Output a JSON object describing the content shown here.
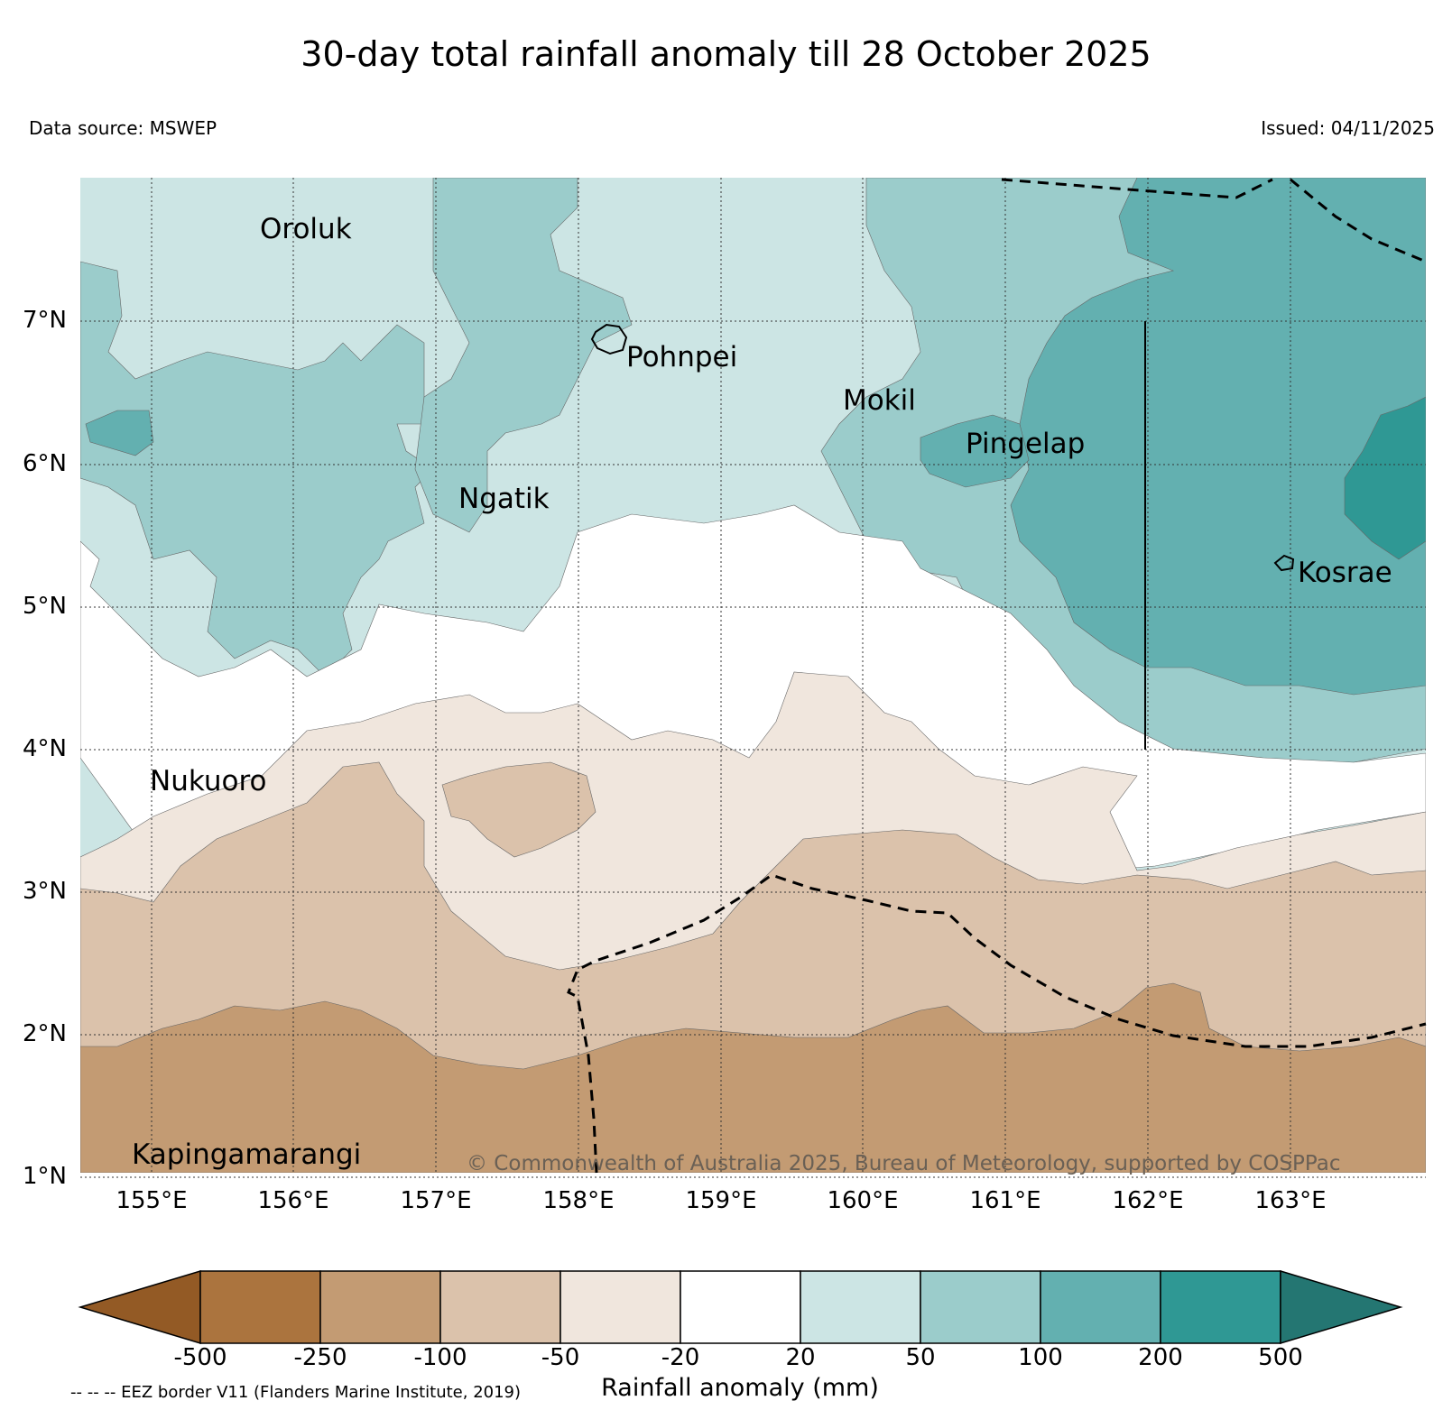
{
  "title": "30-day total rainfall anomaly till 28 October 2025",
  "data_source": "Data source: MSWEP",
  "issued": "Issued: 04/11/2025",
  "copyright": "© Commonwealth of Australia 2025, Bureau of Meteorology, supported by COSPPac",
  "eez_note": "-- -- -- EEZ border V11 (Flanders Marine Institute, 2019)",
  "map": {
    "lat_ticks": [
      "7°N",
      "6°N",
      "5°N",
      "4°N",
      "3°N",
      "2°N",
      "1°N"
    ],
    "lon_ticks": [
      "155°E",
      "156°E",
      "157°E",
      "158°E",
      "159°E",
      "160°E",
      "161°E",
      "162°E",
      "163°E"
    ],
    "places": {
      "oroluk": "Oroluk",
      "pohnpei": "Pohnpei",
      "mokil": "Mokil",
      "pingelap": "Pingelap",
      "ngatik": "Ngatik",
      "kosrae": "Kosrae",
      "nukuoro": "Nukuoro",
      "kapingamarangi": "Kapingamarangi"
    }
  },
  "colorbar": {
    "title": "Rainfall anomaly (mm)",
    "labels": [
      "-500",
      "-250",
      "-100",
      "-50",
      "-20",
      "20",
      "50",
      "100",
      "200",
      "500"
    ],
    "colors": {
      "lt_neg500": "#935a25",
      "neg500_neg250": "#ab743e",
      "neg250_neg100": "#c39b73",
      "neg100_neg50": "#dbc2ab",
      "neg50_neg20": "#f0e6dd",
      "neg20_20": "#ffffff",
      "20_50": "#cce5e4",
      "50_100": "#9bcccb",
      "100_200": "#63b0b0",
      "200_500": "#2f9894",
      "gt_500": "#247672"
    }
  }
}
